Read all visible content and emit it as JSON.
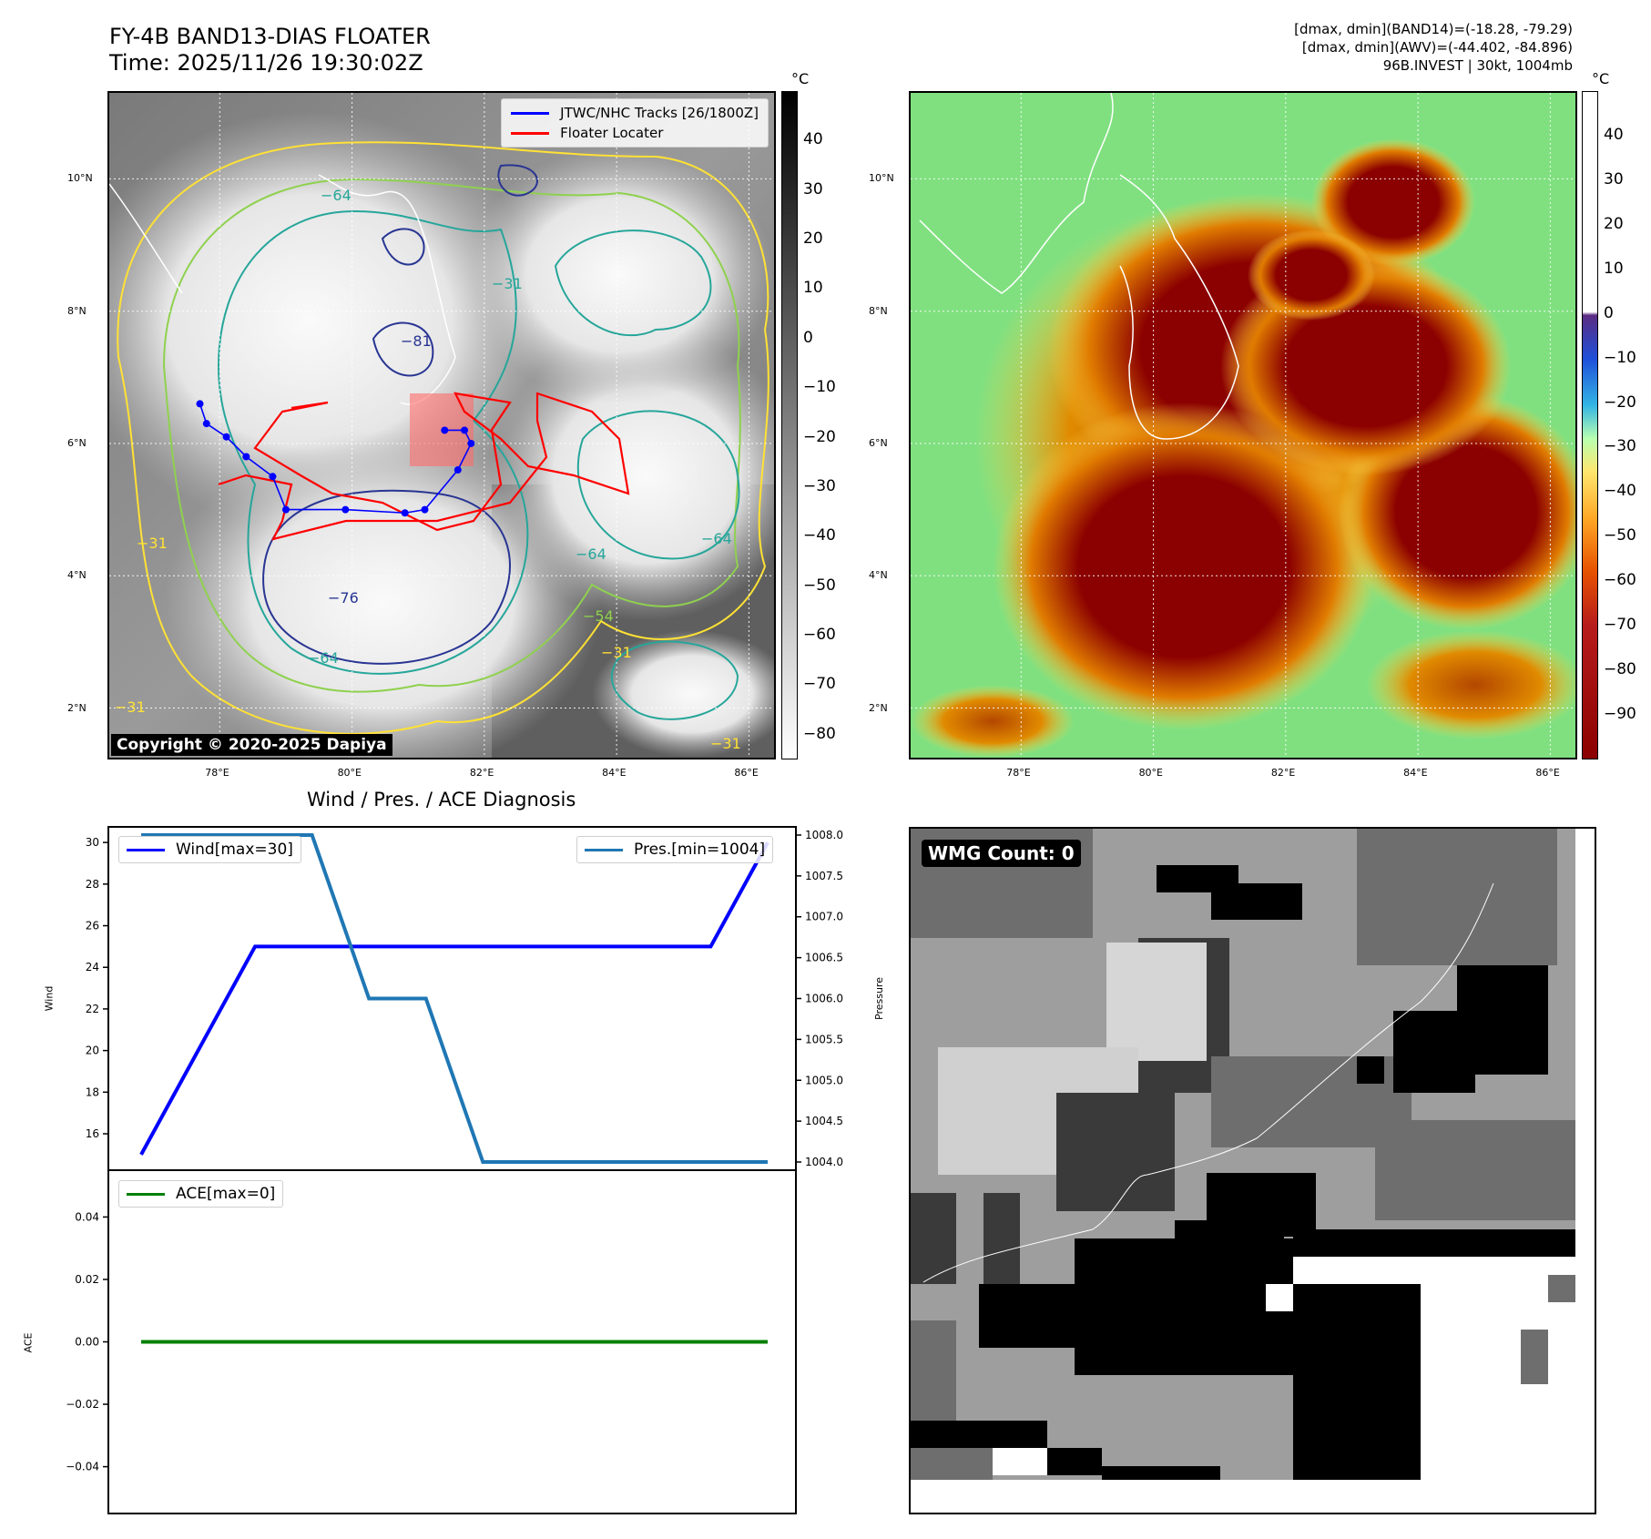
{
  "header": {
    "title_line1": "FY-4B BAND13-DIAS FLOATER",
    "title_line2": "Time: 2025/11/26 19:30:02Z",
    "info_line1": "[dmax, dmin](BAND14)=(-18.28, -79.29)",
    "info_line2": "[dmax, dmin](AWV)=(-44.402, -84.896)",
    "info_line3": "96B.INVEST | 30kt, 1004mb"
  },
  "map_axes": {
    "lat_labels": [
      "10°N",
      "8°N",
      "6°N",
      "4°N",
      "2°N"
    ],
    "lon_labels": [
      "78°E",
      "80°E",
      "82°E",
      "84°E",
      "86°E"
    ],
    "lat_values": [
      10,
      8,
      6,
      4,
      2
    ],
    "lon_values": [
      78,
      80,
      82,
      84,
      86
    ],
    "lon_range": [
      76.33,
      86.38
    ],
    "lat_range": [
      1.25,
      11.3
    ]
  },
  "left_map": {
    "legend": [
      "JTWC/NHC Tracks [26/1800Z]",
      "Floater Locater"
    ],
    "copyright": "Copyright © 2020-2025 Dapiya",
    "contour_labels": [
      "−64",
      "−81",
      "−76",
      "−64",
      "−31",
      "−54",
      "−64",
      "−64",
      "−31",
      "−31",
      "−31",
      "−31"
    ],
    "colorbar_unit": "°C",
    "colorbar_ticks": [
      "40",
      "30",
      "20",
      "10",
      "0",
      "−10",
      "−20",
      "−30",
      "−40",
      "−50",
      "−60",
      "−70",
      "−80"
    ],
    "colorbar_values": [
      40,
      30,
      20,
      10,
      0,
      -10,
      -20,
      -30,
      -40,
      -50,
      -60,
      -70,
      -80
    ],
    "colorbar_range": [
      -85,
      50
    ],
    "colors": {
      "track": "#0000ff",
      "floater": "#ff0000"
    },
    "track_points": [
      {
        "lon": 77.7,
        "lat": 6.6
      },
      {
        "lon": 77.8,
        "lat": 6.3
      },
      {
        "lon": 78.1,
        "lat": 6.1
      },
      {
        "lon": 78.4,
        "lat": 5.8
      },
      {
        "lon": 78.8,
        "lat": 5.5
      },
      {
        "lon": 79.0,
        "lat": 5.0
      },
      {
        "lon": 79.9,
        "lat": 5.0
      },
      {
        "lon": 80.8,
        "lat": 4.95
      },
      {
        "lon": 81.1,
        "lat": 5.0
      },
      {
        "lon": 81.6,
        "lat": 5.6
      },
      {
        "lon": 81.8,
        "lat": 6.0
      },
      {
        "lon": 81.7,
        "lat": 6.2
      },
      {
        "lon": 81.4,
        "lat": 6.2
      }
    ]
  },
  "right_map": {
    "colorbar_unit": "°C",
    "colorbar_ticks": [
      "40",
      "30",
      "20",
      "10",
      "0",
      "−10",
      "−20",
      "−30",
      "−40",
      "−50",
      "−60",
      "−70",
      "−80",
      "−90"
    ],
    "colorbar_values": [
      40,
      30,
      20,
      10,
      0,
      -10,
      -20,
      -30,
      -40,
      -50,
      -60,
      -70,
      -80,
      -90
    ],
    "colorbar_range": [
      -100,
      50
    ]
  },
  "diagnosis": {
    "title": "Wind / Pres. / ACE Diagnosis",
    "wind_label": "Wind",
    "pressure_label": "Pressure",
    "ace_label": "ACE",
    "wind_legend": "Wind[max=30]",
    "pres_legend": "Pres.[min=1004]",
    "ace_legend": "ACE[max=0]",
    "colors": {
      "wind": "#0000ff",
      "pressure": "#1f77b4",
      "ace": "#008000"
    }
  },
  "chart_data": [
    {
      "type": "line",
      "title": "Wind / Pres. / ACE Diagnosis",
      "x": [
        0,
        1,
        2,
        3,
        4,
        5,
        6,
        7,
        8,
        9,
        10,
        11
      ],
      "series": [
        {
          "name": "Wind[max=30]",
          "axis": "left",
          "values": [
            15,
            20,
            25,
            25,
            25,
            25,
            25,
            25,
            25,
            25,
            25,
            30
          ]
        },
        {
          "name": "Pres.[min=1004]",
          "axis": "right",
          "values": [
            1008,
            1008,
            1008,
            1008,
            1006,
            1006,
            1004,
            1004,
            1004,
            1004,
            1004,
            1004
          ]
        }
      ],
      "ylabel": "Wind",
      "y2label": "Pressure",
      "ylim": [
        14.25,
        30.75
      ],
      "y2lim": [
        1003.9,
        1008.1
      ],
      "yticks": [
        "30",
        "28",
        "26",
        "24",
        "22",
        "20",
        "18",
        "16"
      ],
      "ytick_values": [
        30,
        28,
        26,
        24,
        22,
        20,
        18,
        16
      ],
      "y2ticks": [
        "1008.0",
        "1007.5",
        "1007.0",
        "1006.5",
        "1006.0",
        "1005.5",
        "1005.0",
        "1004.5",
        "1004.0"
      ],
      "y2tick_values": [
        1008.0,
        1007.5,
        1007.0,
        1006.5,
        1006.0,
        1005.5,
        1005.0,
        1004.5,
        1004.0
      ]
    },
    {
      "type": "line",
      "x": [
        0,
        1,
        2,
        3,
        4,
        5,
        6,
        7,
        8,
        9,
        10,
        11
      ],
      "series": [
        {
          "name": "ACE[max=0]",
          "values": [
            0,
            0,
            0,
            0,
            0,
            0,
            0,
            0,
            0,
            0,
            0,
            0
          ]
        }
      ],
      "ylabel": "ACE",
      "ylim": [
        -0.055,
        0.055
      ],
      "yticks": [
        "0.04",
        "0.02",
        "0.00",
        "−0.02",
        "−0.04"
      ],
      "ytick_values": [
        0.04,
        0.02,
        0.0,
        -0.02,
        -0.04
      ]
    }
  ],
  "wmg": {
    "label": "WMG Count: 0"
  }
}
